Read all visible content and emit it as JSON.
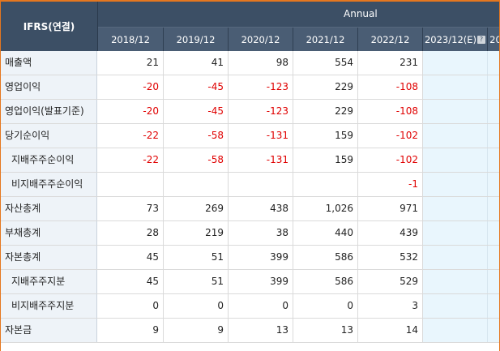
{
  "header": {
    "corner_label": "IFRS(연결)",
    "group_label": "Annual",
    "years": [
      "2018/12",
      "2019/12",
      "2020/12",
      "2021/12",
      "2022/12",
      "2023/12(E)",
      "20"
    ],
    "estimate_icon": "question-icon"
  },
  "rows": [
    {
      "label": "매출액",
      "sub": false,
      "values": [
        "21",
        "41",
        "98",
        "554",
        "231"
      ]
    },
    {
      "label": "영업이익",
      "sub": false,
      "values": [
        "-20",
        "-45",
        "-123",
        "229",
        "-108"
      ]
    },
    {
      "label": "영업이익(발표기준)",
      "sub": false,
      "values": [
        "-20",
        "-45",
        "-123",
        "229",
        "-108"
      ]
    },
    {
      "label": "당기순이익",
      "sub": false,
      "values": [
        "-22",
        "-58",
        "-131",
        "159",
        "-102"
      ]
    },
    {
      "label": "지배주주순이익",
      "sub": true,
      "values": [
        "-22",
        "-58",
        "-131",
        "159",
        "-102"
      ]
    },
    {
      "label": "비지배주주순이익",
      "sub": true,
      "values": [
        "",
        "",
        "",
        "",
        "-1"
      ]
    },
    {
      "label": "자산총계",
      "sub": false,
      "values": [
        "73",
        "269",
        "438",
        "1,026",
        "971"
      ]
    },
    {
      "label": "부채총계",
      "sub": false,
      "values": [
        "28",
        "219",
        "38",
        "440",
        "439"
      ]
    },
    {
      "label": "자본총계",
      "sub": false,
      "values": [
        "45",
        "51",
        "399",
        "586",
        "532"
      ]
    },
    {
      "label": "지배주주지분",
      "sub": true,
      "values": [
        "45",
        "51",
        "399",
        "586",
        "529"
      ]
    },
    {
      "label": "비지배주주지분",
      "sub": true,
      "values": [
        "0",
        "0",
        "0",
        "0",
        "3"
      ]
    },
    {
      "label": "자본금",
      "sub": false,
      "values": [
        "9",
        "9",
        "13",
        "13",
        "14"
      ]
    }
  ],
  "colors": {
    "header_bg": "#3c4f65",
    "border_accent": "#e5771f",
    "negative": "#e00000",
    "estimate_bg": "#e9f6fd"
  }
}
